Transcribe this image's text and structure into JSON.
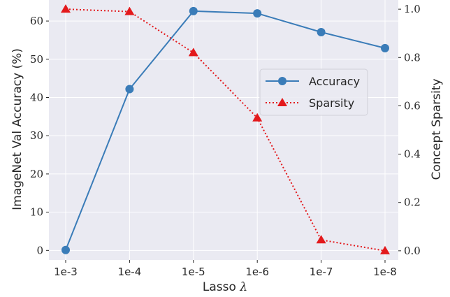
{
  "chart_data": {
    "type": "line",
    "categories": [
      "1e-3",
      "1e-4",
      "1e-5",
      "1e-6",
      "1e-7",
      "1e-8"
    ],
    "xlabel_prefix": "Lasso",
    "xlabel_symbol": "λ",
    "ylabel_left": "ImageNet Val Accuracy (%)",
    "ylabel_right": "Concept Sparsity",
    "y_left": {
      "lim": [
        -2.5,
        65.5
      ],
      "ticks": [
        0,
        10,
        20,
        30,
        40,
        50,
        60
      ]
    },
    "y_right": {
      "lim": [
        -0.038,
        1.038
      ],
      "ticks": [
        0.0,
        0.2,
        0.4,
        0.6,
        0.8,
        1.0
      ],
      "tick_labels": [
        "0.0",
        "0.2",
        "0.4",
        "0.6",
        "0.8",
        "1.0"
      ]
    },
    "grid": true,
    "legend_position": "center-right",
    "series": [
      {
        "name": "Accuracy",
        "axis": "left",
        "values": [
          0.1,
          42.2,
          62.6,
          62.0,
          57.1,
          52.9
        ],
        "color": "#3a7cb8",
        "marker": "circle",
        "line_style": "solid"
      },
      {
        "name": "Sparsity",
        "axis": "right",
        "values": [
          1.0,
          0.99,
          0.82,
          0.55,
          0.045,
          0.0
        ],
        "color": "#e3191c",
        "marker": "triangle",
        "line_style": "dotted"
      }
    ],
    "colors": {
      "background": "#eaeaf2",
      "grid": "#ffffff"
    }
  }
}
